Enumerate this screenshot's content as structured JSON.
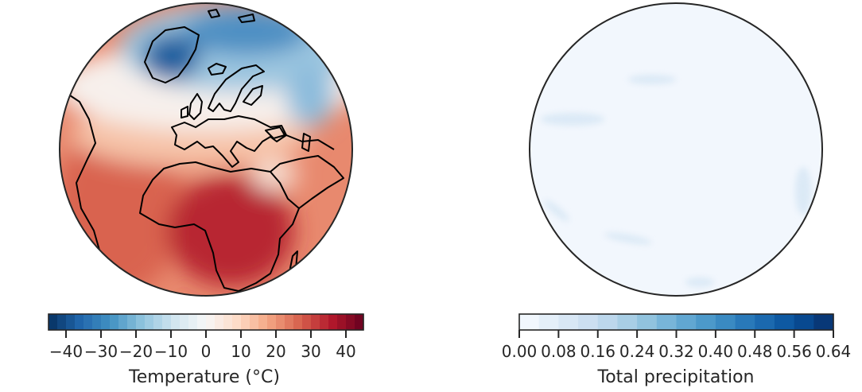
{
  "chart_data": [
    {
      "type": "heatmap",
      "projection": "orthographic globe centered on Europe/Africa",
      "variable": "temperature",
      "colormap": "RdBu_r",
      "colorbar": {
        "label": "Temperature (°C)",
        "range": [
          -45,
          45
        ],
        "step": 2.5,
        "ticks": [
          -40,
          -30,
          -20,
          -10,
          0,
          10,
          20,
          30,
          40
        ],
        "tick_labels": [
          "−40",
          "−30",
          "−20",
          "−10",
          "0",
          "10",
          "20",
          "30",
          "40"
        ],
        "colors": [
          "#053061",
          "#2166ac",
          "#4393c3",
          "#92c5de",
          "#d1e5f0",
          "#f7f7f7",
          "#fddbc7",
          "#f4a582",
          "#d6604d",
          "#b2182b",
          "#67001f"
        ]
      }
    },
    {
      "type": "heatmap",
      "projection": "orthographic globe centered on Europe/Africa",
      "variable": "total precipitation",
      "colormap": "Blues",
      "colorbar": {
        "label": "Total precipitation",
        "range": [
          0,
          0.64
        ],
        "step": 0.04,
        "ticks": [
          0,
          0.08,
          0.16,
          0.24,
          0.32,
          0.4,
          0.48,
          0.56,
          0.64
        ],
        "tick_labels": [
          "0.00",
          "0.08",
          "0.16",
          "0.24",
          "0.32",
          "0.40",
          "0.48",
          "0.56",
          "0.64"
        ],
        "colors": [
          "#f7fbff",
          "#deebf7",
          "#c6dbef",
          "#9ecae1",
          "#6baed6",
          "#4292c6",
          "#2171b5",
          "#08519c",
          "#08306b"
        ]
      }
    }
  ]
}
